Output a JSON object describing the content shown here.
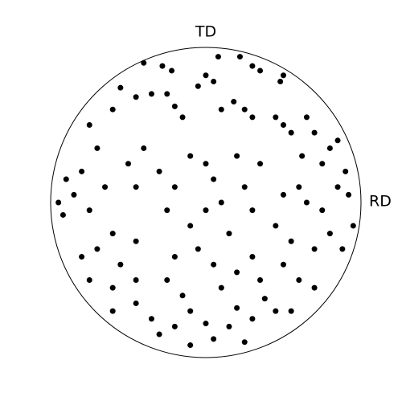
{
  "chart_data": {
    "type": "scatter",
    "top_label": "TD",
    "right_label": "RD",
    "color": "#000000",
    "xlim": [
      -1,
      1
    ],
    "ylim": [
      -1,
      1
    ],
    "x": [
      -0.4,
      -0.28,
      -0.22,
      0.08,
      0.22,
      0.3,
      0.35,
      0.0,
      0.05,
      -0.05,
      0.48,
      0.5,
      -0.55,
      -0.6,
      -0.45,
      -0.35,
      -0.25,
      -0.2,
      -0.15,
      0.1,
      0.18,
      0.25,
      0.3,
      0.45,
      0.5,
      0.55,
      0.65,
      0.7,
      0.62,
      -0.75,
      -0.7,
      -0.8,
      -0.9,
      -0.95,
      -0.92,
      -0.85,
      -0.75,
      -0.65,
      -0.6,
      -0.7,
      -0.8,
      -0.75,
      -0.6,
      -0.55,
      -0.45,
      -0.5,
      -0.4,
      -0.45,
      -0.3,
      -0.2,
      -0.25,
      -0.1,
      0,
      0.05,
      0.1,
      0,
      -0.1,
      0.15,
      0.25,
      0.3,
      0.2,
      0.35,
      -0.05,
      0.05,
      -0.2,
      -0.25,
      -0.15,
      0.1,
      0.2,
      0.3,
      0.5,
      0.6,
      0.65,
      0.75,
      0.85,
      0.9,
      0.92,
      0.95,
      0.88,
      0.8,
      0.7,
      0.55,
      0.45,
      0.5,
      0.6,
      0.7,
      0.8,
      0.85,
      0.75,
      -0.45,
      -0.35,
      -0.3,
      -0.2,
      -0.1,
      0.0,
      0.05,
      0.15,
      0.2,
      0.3,
      0.38,
      0.45,
      0.55,
      -0.6,
      -0.45,
      0.35,
      -0.1,
      0.25
    ],
    "y": [
      0.9,
      0.88,
      0.85,
      0.94,
      0.94,
      0.88,
      0.85,
      0.82,
      0.78,
      0.75,
      0.78,
      0.82,
      0.74,
      0.6,
      0.68,
      0.7,
      0.7,
      0.62,
      0.55,
      0.6,
      0.65,
      0.6,
      0.55,
      0.55,
      0.5,
      0.45,
      0.55,
      0.45,
      0.3,
      0.5,
      0.35,
      0.2,
      0.15,
      0.0,
      -0.08,
      0.05,
      -0.05,
      0.1,
      -0.2,
      -0.3,
      -0.35,
      -0.5,
      -0.55,
      -0.4,
      -0.25,
      0.25,
      0.35,
      0.1,
      0.2,
      0.1,
      -0.05,
      0.3,
      0.25,
      0.15,
      0.0,
      -0.05,
      -0.15,
      -0.2,
      0.1,
      -0.05,
      0.3,
      0.25,
      -0.3,
      -0.4,
      -0.35,
      -0.5,
      -0.6,
      -0.55,
      -0.45,
      -0.35,
      0.05,
      0.1,
      0.0,
      -0.05,
      0.1,
      0.2,
      0.05,
      -0.15,
      -0.3,
      -0.2,
      -0.3,
      -0.25,
      -0.15,
      -0.4,
      -0.5,
      -0.55,
      0.35,
      0.4,
      0.25,
      -0.65,
      -0.75,
      -0.85,
      -0.8,
      -0.7,
      -0.78,
      -0.88,
      -0.8,
      -0.68,
      -0.75,
      -0.62,
      -0.7,
      -0.7,
      -0.7,
      -0.5,
      -0.5,
      -0.92,
      -0.9
    ]
  }
}
